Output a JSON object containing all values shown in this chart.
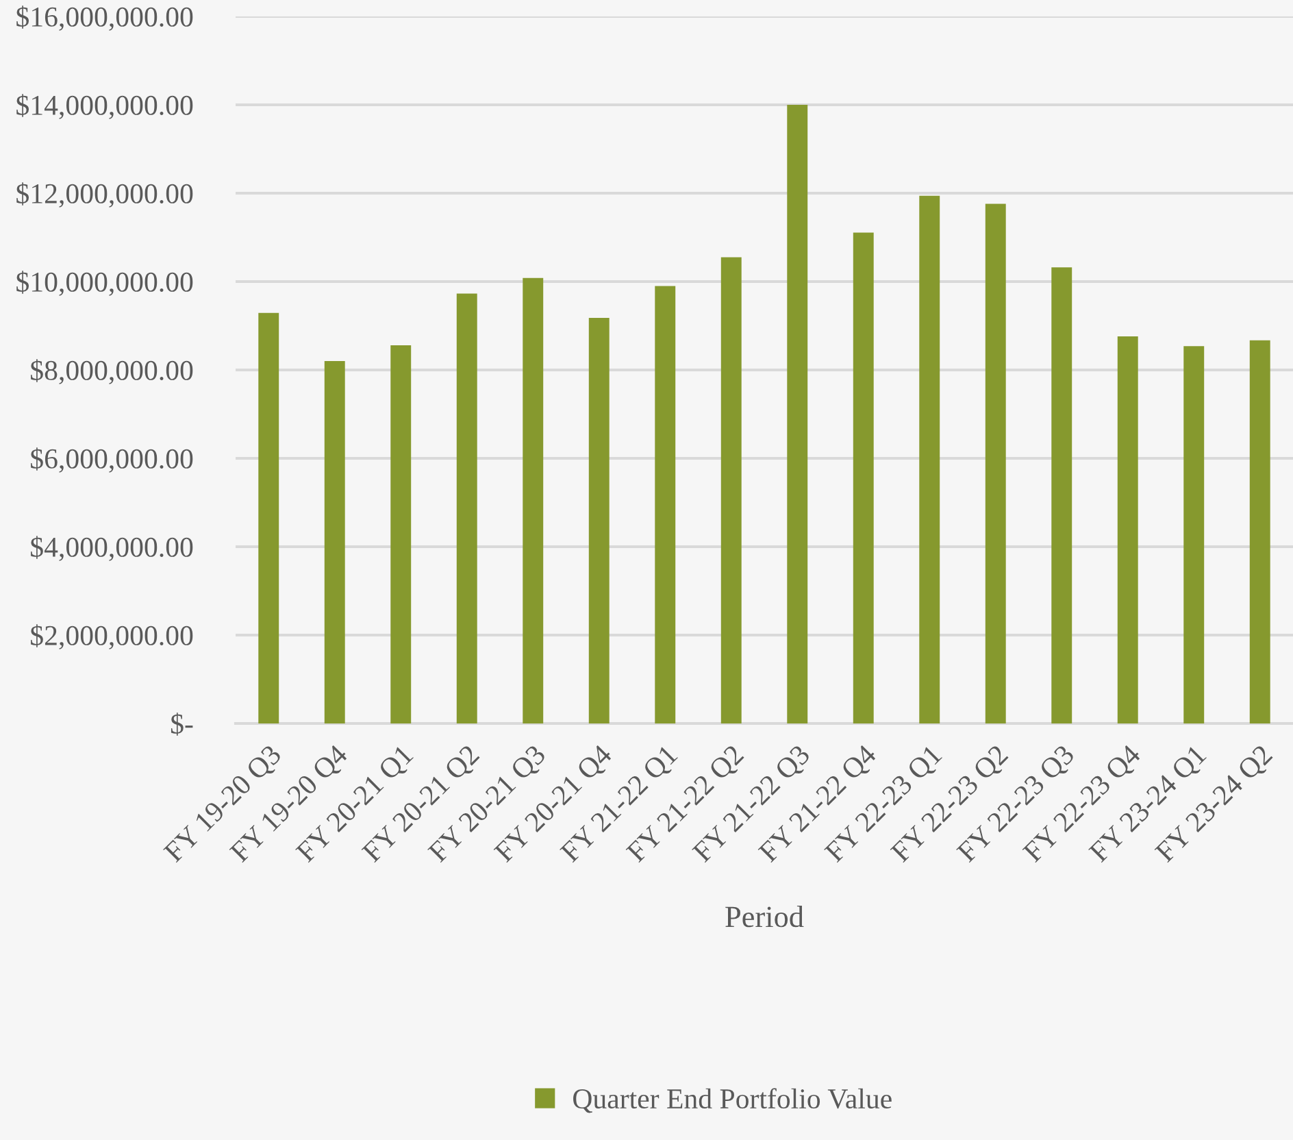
{
  "chart_data": {
    "type": "bar",
    "xlabel": "Period",
    "categories": [
      "FY 19-20 Q3",
      "FY 19-20 Q4",
      "FY 20-21 Q1",
      "FY 20-21 Q2",
      "FY 20-21 Q3",
      "FY 20-21 Q4",
      "FY 21-22 Q1",
      "FY 21-22 Q2",
      "FY 21-22 Q3",
      "FY 21-22 Q4",
      "FY 22-23 Q1",
      "FY 22-23 Q2",
      "FY 22-23 Q3",
      "FY 22-23 Q4",
      "FY 23-24 Q1",
      "FY 23-24 Q2"
    ],
    "series": [
      {
        "name": "Quarter End Portfolio Value",
        "color": "#86992e",
        "values": [
          9290000,
          8200000,
          8560000,
          9730000,
          10080000,
          9180000,
          9900000,
          10550000,
          14000000,
          11110000,
          11940000,
          11760000,
          10320000,
          8760000,
          8540000,
          8670000
        ]
      }
    ],
    "ylim": [
      0,
      16000000
    ],
    "yticks": [
      {
        "value": 0,
        "label": "$-"
      },
      {
        "value": 2000000,
        "label": "$2,000,000.00"
      },
      {
        "value": 4000000,
        "label": "$4,000,000.00"
      },
      {
        "value": 6000000,
        "label": "$6,000,000.00"
      },
      {
        "value": 8000000,
        "label": "$8,000,000.00"
      },
      {
        "value": 10000000,
        "label": "$10,000,000.00"
      },
      {
        "value": 12000000,
        "label": "$12,000,000.00"
      },
      {
        "value": 14000000,
        "label": "$14,000,000.00"
      },
      {
        "value": 16000000,
        "label": "$16,000,000.00"
      }
    ],
    "grid": "y",
    "legend": "bottom"
  }
}
